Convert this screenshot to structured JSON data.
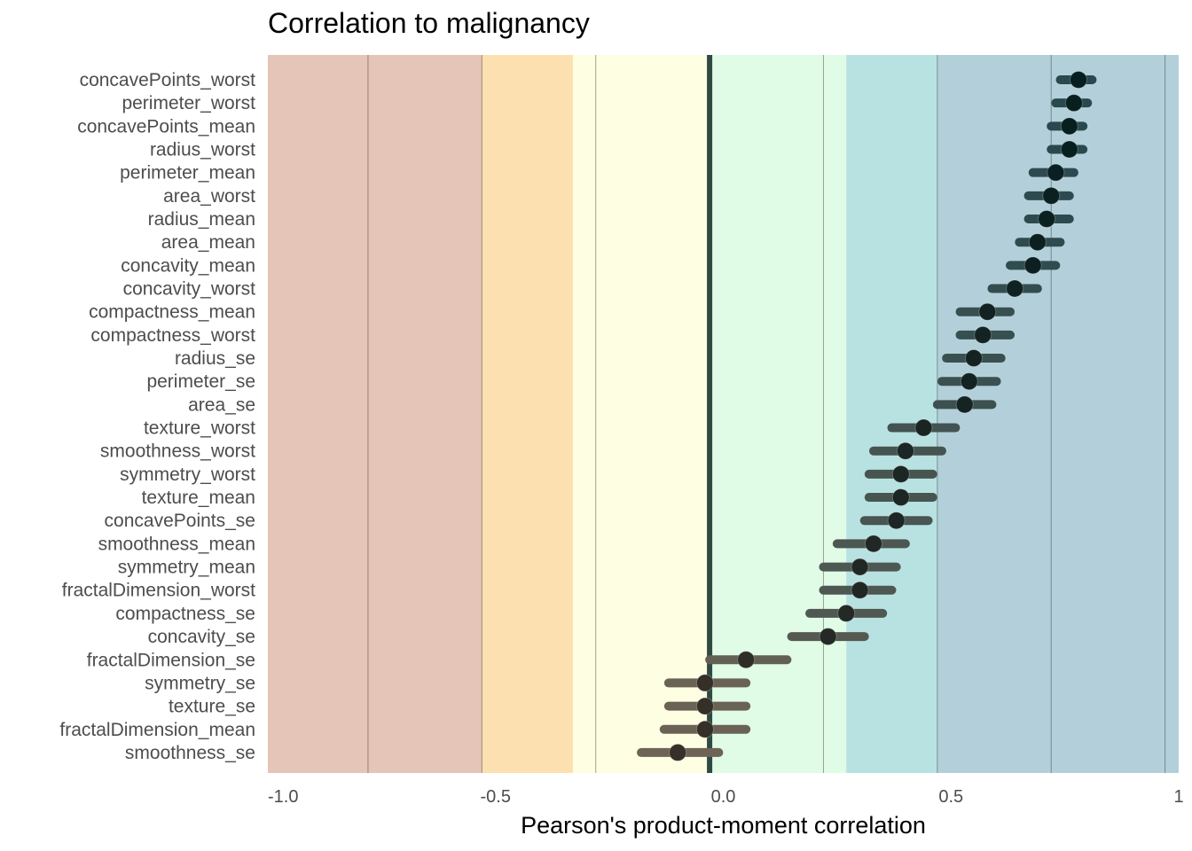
{
  "chart_data": {
    "type": "dot-interval",
    "title": "Correlation to malignancy",
    "xlabel": "Pearson's product-moment correlation",
    "ylabel": "",
    "xlim": [
      -1,
      1
    ],
    "x_ticks": [
      -1.0,
      -0.5,
      0.0,
      0.5,
      1.0
    ],
    "x_tick_labels": [
      "-1.0",
      "-0.5",
      "0.0",
      "0.5",
      "1"
    ],
    "grid": "vertical lines at band boundaries",
    "reference_line": -0.03,
    "bands": [
      {
        "from": -1.0,
        "to": -0.53,
        "color": "#e4c5b8"
      },
      {
        "from": -0.53,
        "to": -0.33,
        "color": "#fde0b0"
      },
      {
        "from": -0.33,
        "to": -0.03,
        "color": "#fefee2"
      },
      {
        "from": -0.03,
        "to": 0.27,
        "color": "#e0fbe6"
      },
      {
        "from": 0.27,
        "to": 0.47,
        "color": "#b8e2e1"
      },
      {
        "from": 0.47,
        "to": 1.0,
        "color": "#b3d0da"
      }
    ],
    "band_lines": [
      -0.78,
      -0.53,
      -0.28,
      0.22,
      0.47,
      0.72,
      0.97
    ],
    "points": [
      {
        "label": "concavePoints_worst",
        "r": 0.78,
        "lo": 0.74,
        "hi": 0.81
      },
      {
        "label": "perimeter_worst",
        "r": 0.77,
        "lo": 0.73,
        "hi": 0.8
      },
      {
        "label": "concavePoints_mean",
        "r": 0.76,
        "lo": 0.72,
        "hi": 0.79
      },
      {
        "label": "radius_worst",
        "r": 0.76,
        "lo": 0.72,
        "hi": 0.79
      },
      {
        "label": "perimeter_mean",
        "r": 0.73,
        "lo": 0.68,
        "hi": 0.77
      },
      {
        "label": "area_worst",
        "r": 0.72,
        "lo": 0.67,
        "hi": 0.76
      },
      {
        "label": "radius_mean",
        "r": 0.71,
        "lo": 0.67,
        "hi": 0.76
      },
      {
        "label": "area_mean",
        "r": 0.69,
        "lo": 0.65,
        "hi": 0.74
      },
      {
        "label": "concavity_mean",
        "r": 0.68,
        "lo": 0.63,
        "hi": 0.73
      },
      {
        "label": "concavity_worst",
        "r": 0.64,
        "lo": 0.59,
        "hi": 0.69
      },
      {
        "label": "compactness_mean",
        "r": 0.58,
        "lo": 0.52,
        "hi": 0.63
      },
      {
        "label": "compactness_worst",
        "r": 0.57,
        "lo": 0.52,
        "hi": 0.63
      },
      {
        "label": "radius_se",
        "r": 0.55,
        "lo": 0.49,
        "hi": 0.61
      },
      {
        "label": "perimeter_se",
        "r": 0.54,
        "lo": 0.48,
        "hi": 0.6
      },
      {
        "label": "area_se",
        "r": 0.53,
        "lo": 0.47,
        "hi": 0.59
      },
      {
        "label": "texture_worst",
        "r": 0.44,
        "lo": 0.37,
        "hi": 0.51
      },
      {
        "label": "smoothness_worst",
        "r": 0.4,
        "lo": 0.33,
        "hi": 0.48
      },
      {
        "label": "symmetry_worst",
        "r": 0.39,
        "lo": 0.32,
        "hi": 0.46
      },
      {
        "label": "texture_mean",
        "r": 0.39,
        "lo": 0.32,
        "hi": 0.46
      },
      {
        "label": "concavePoints_se",
        "r": 0.38,
        "lo": 0.31,
        "hi": 0.45
      },
      {
        "label": "smoothness_mean",
        "r": 0.33,
        "lo": 0.25,
        "hi": 0.4
      },
      {
        "label": "symmetry_mean",
        "r": 0.3,
        "lo": 0.22,
        "hi": 0.38
      },
      {
        "label": "fractalDimension_worst",
        "r": 0.3,
        "lo": 0.22,
        "hi": 0.37
      },
      {
        "label": "compactness_se",
        "r": 0.27,
        "lo": 0.19,
        "hi": 0.35
      },
      {
        "label": "concavity_se",
        "r": 0.23,
        "lo": 0.15,
        "hi": 0.31
      },
      {
        "label": "fractalDimension_se",
        "r": 0.05,
        "lo": -0.03,
        "hi": 0.14
      },
      {
        "label": "symmetry_se",
        "r": -0.04,
        "lo": -0.12,
        "hi": 0.05
      },
      {
        "label": "texture_se",
        "r": -0.04,
        "lo": -0.12,
        "hi": 0.05
      },
      {
        "label": "fractalDimension_mean",
        "r": -0.04,
        "lo": -0.13,
        "hi": 0.05
      },
      {
        "label": "smoothness_se",
        "r": -0.1,
        "lo": -0.18,
        "hi": -0.01
      }
    ]
  }
}
